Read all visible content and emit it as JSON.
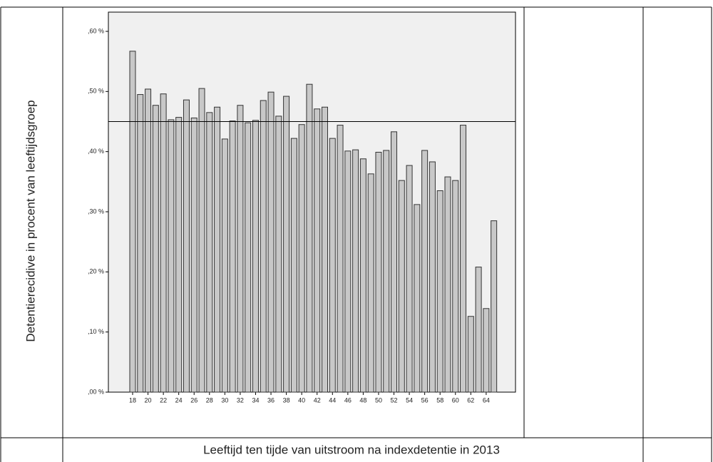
{
  "chart_data": {
    "type": "bar",
    "y_label": "Detentierecidive in procent van leeftijdsgroep",
    "x_label": "Leeftijd ten tijde van uitstroom na indexdetentie in 2013",
    "categories": [
      18,
      null,
      20,
      null,
      22,
      null,
      24,
      null,
      26,
      null,
      28,
      null,
      30,
      null,
      32,
      null,
      34,
      null,
      36,
      null,
      38,
      null,
      40,
      null,
      42,
      null,
      44,
      null,
      46,
      null,
      48,
      null,
      50,
      null,
      52,
      null,
      54,
      null,
      56,
      null,
      58,
      null,
      60,
      null,
      62,
      null,
      64,
      null
    ],
    "values": [
      0.567,
      0.495,
      0.504,
      0.477,
      0.496,
      0.453,
      0.457,
      0.486,
      0.456,
      0.505,
      0.465,
      0.474,
      0.421,
      0.451,
      0.477,
      0.448,
      0.452,
      0.485,
      0.499,
      0.459,
      0.492,
      0.422,
      0.445,
      0.512,
      0.471,
      0.474,
      0.422,
      0.444,
      0.401,
      0.403,
      0.388,
      0.363,
      0.399,
      0.402,
      0.433,
      0.352,
      0.377,
      0.312,
      0.402,
      0.383,
      0.335,
      0.358,
      0.352,
      0.444,
      0.126,
      0.208,
      0.139,
      0.285
    ],
    "color": "#c8c8c8",
    "reference_line": 0.45,
    "ylim": [
      0,
      0.632
    ],
    "yticks": [
      {
        "value": 0,
        "label": ",00 %"
      },
      {
        "value": 0.1,
        "label": ",10 %"
      },
      {
        "value": 0.2,
        "label": ",20 %"
      },
      {
        "value": 0.3,
        "label": ",30 %"
      },
      {
        "value": 0.4,
        "label": ",40 %"
      },
      {
        "value": 0.5,
        "label": ",50 %"
      },
      {
        "value": 0.6,
        "label": ",60 %"
      }
    ],
    "grid": false
  }
}
